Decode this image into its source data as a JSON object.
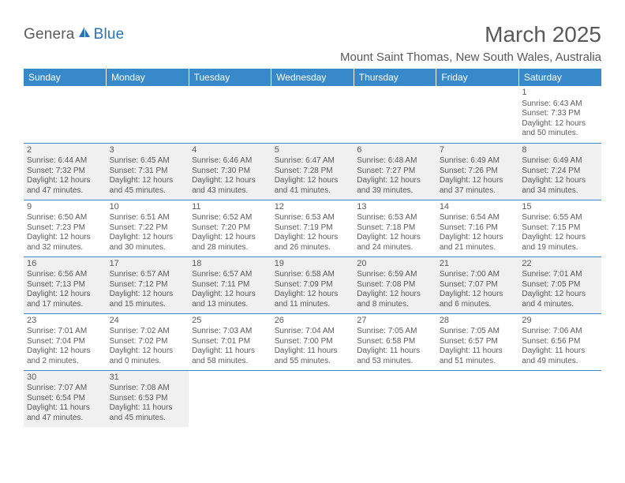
{
  "logo": {
    "general": "Genera",
    "blue": "Blue"
  },
  "title": "March 2025",
  "location": "Mount Saint Thomas, New South Wales, Australia",
  "colors": {
    "header_bg": "#3789ca",
    "header_text": "#ffffff",
    "text": "#5a5a5a",
    "gray_cell": "#f0f0f0",
    "border": "#3789ca",
    "logo_blue": "#2a73b8"
  },
  "dayHeaders": [
    "Sunday",
    "Monday",
    "Tuesday",
    "Wednesday",
    "Thursday",
    "Friday",
    "Saturday"
  ],
  "weeks": [
    [
      null,
      null,
      null,
      null,
      null,
      null,
      {
        "n": "1",
        "gray": false,
        "sr": "6:43 AM",
        "ss": "7:33 PM",
        "dl": "12 hours and 50 minutes."
      }
    ],
    [
      {
        "n": "2",
        "gray": true,
        "sr": "6:44 AM",
        "ss": "7:32 PM",
        "dl": "12 hours and 47 minutes."
      },
      {
        "n": "3",
        "gray": true,
        "sr": "6:45 AM",
        "ss": "7:31 PM",
        "dl": "12 hours and 45 minutes."
      },
      {
        "n": "4",
        "gray": true,
        "sr": "6:46 AM",
        "ss": "7:30 PM",
        "dl": "12 hours and 43 minutes."
      },
      {
        "n": "5",
        "gray": true,
        "sr": "6:47 AM",
        "ss": "7:28 PM",
        "dl": "12 hours and 41 minutes."
      },
      {
        "n": "6",
        "gray": true,
        "sr": "6:48 AM",
        "ss": "7:27 PM",
        "dl": "12 hours and 39 minutes."
      },
      {
        "n": "7",
        "gray": true,
        "sr": "6:49 AM",
        "ss": "7:26 PM",
        "dl": "12 hours and 37 minutes."
      },
      {
        "n": "8",
        "gray": true,
        "sr": "6:49 AM",
        "ss": "7:24 PM",
        "dl": "12 hours and 34 minutes."
      }
    ],
    [
      {
        "n": "9",
        "gray": false,
        "sr": "6:50 AM",
        "ss": "7:23 PM",
        "dl": "12 hours and 32 minutes."
      },
      {
        "n": "10",
        "gray": false,
        "sr": "6:51 AM",
        "ss": "7:22 PM",
        "dl": "12 hours and 30 minutes."
      },
      {
        "n": "11",
        "gray": false,
        "sr": "6:52 AM",
        "ss": "7:20 PM",
        "dl": "12 hours and 28 minutes."
      },
      {
        "n": "12",
        "gray": false,
        "sr": "6:53 AM",
        "ss": "7:19 PM",
        "dl": "12 hours and 26 minutes."
      },
      {
        "n": "13",
        "gray": false,
        "sr": "6:53 AM",
        "ss": "7:18 PM",
        "dl": "12 hours and 24 minutes."
      },
      {
        "n": "14",
        "gray": false,
        "sr": "6:54 AM",
        "ss": "7:16 PM",
        "dl": "12 hours and 21 minutes."
      },
      {
        "n": "15",
        "gray": false,
        "sr": "6:55 AM",
        "ss": "7:15 PM",
        "dl": "12 hours and 19 minutes."
      }
    ],
    [
      {
        "n": "16",
        "gray": true,
        "sr": "6:56 AM",
        "ss": "7:13 PM",
        "dl": "12 hours and 17 minutes."
      },
      {
        "n": "17",
        "gray": true,
        "sr": "6:57 AM",
        "ss": "7:12 PM",
        "dl": "12 hours and 15 minutes."
      },
      {
        "n": "18",
        "gray": true,
        "sr": "6:57 AM",
        "ss": "7:11 PM",
        "dl": "12 hours and 13 minutes."
      },
      {
        "n": "19",
        "gray": true,
        "sr": "6:58 AM",
        "ss": "7:09 PM",
        "dl": "12 hours and 11 minutes."
      },
      {
        "n": "20",
        "gray": true,
        "sr": "6:59 AM",
        "ss": "7:08 PM",
        "dl": "12 hours and 8 minutes."
      },
      {
        "n": "21",
        "gray": true,
        "sr": "7:00 AM",
        "ss": "7:07 PM",
        "dl": "12 hours and 6 minutes."
      },
      {
        "n": "22",
        "gray": true,
        "sr": "7:01 AM",
        "ss": "7:05 PM",
        "dl": "12 hours and 4 minutes."
      }
    ],
    [
      {
        "n": "23",
        "gray": false,
        "sr": "7:01 AM",
        "ss": "7:04 PM",
        "dl": "12 hours and 2 minutes."
      },
      {
        "n": "24",
        "gray": false,
        "sr": "7:02 AM",
        "ss": "7:02 PM",
        "dl": "12 hours and 0 minutes."
      },
      {
        "n": "25",
        "gray": false,
        "sr": "7:03 AM",
        "ss": "7:01 PM",
        "dl": "11 hours and 58 minutes."
      },
      {
        "n": "26",
        "gray": false,
        "sr": "7:04 AM",
        "ss": "7:00 PM",
        "dl": "11 hours and 55 minutes."
      },
      {
        "n": "27",
        "gray": false,
        "sr": "7:05 AM",
        "ss": "6:58 PM",
        "dl": "11 hours and 53 minutes."
      },
      {
        "n": "28",
        "gray": false,
        "sr": "7:05 AM",
        "ss": "6:57 PM",
        "dl": "11 hours and 51 minutes."
      },
      {
        "n": "29",
        "gray": false,
        "sr": "7:06 AM",
        "ss": "6:56 PM",
        "dl": "11 hours and 49 minutes."
      }
    ],
    [
      {
        "n": "30",
        "gray": true,
        "sr": "7:07 AM",
        "ss": "6:54 PM",
        "dl": "11 hours and 47 minutes."
      },
      {
        "n": "31",
        "gray": true,
        "sr": "7:08 AM",
        "ss": "6:53 PM",
        "dl": "11 hours and 45 minutes."
      },
      null,
      null,
      null,
      null,
      null
    ]
  ],
  "labels": {
    "sunrise": "Sunrise: ",
    "sunset": "Sunset: ",
    "daylight": "Daylight: "
  }
}
